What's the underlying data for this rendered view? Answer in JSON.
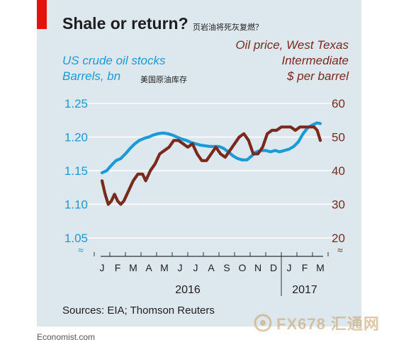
{
  "header": {
    "title": "Shale or return?",
    "title_cn": "页岩油将死灰复燃？"
  },
  "left_axis_label": {
    "line1": "US crude oil stocks",
    "line2": "Barrels, bn",
    "cn": "美国原油库存"
  },
  "right_axis_label": {
    "line1": "Oil price, West Texas",
    "line2": "Intermediate",
    "line3": "$ per barrel"
  },
  "source": "Sources: EIA; Thomson Reuters",
  "footer": "Economist.com",
  "watermark": "FX678 汇通网",
  "colors": {
    "background": "#dde7ee",
    "stocks": "#1a9ad6",
    "price": "#7a2a1c",
    "accent": "#e3120b",
    "grid": "#ffffff"
  },
  "chart_data": {
    "type": "line",
    "x_months": [
      "J",
      "F",
      "M",
      "A",
      "M",
      "J",
      "J",
      "A",
      "S",
      "O",
      "N",
      "D",
      "J",
      "F",
      "M"
    ],
    "x_years": [
      "2016",
      "2017"
    ],
    "left_axis": {
      "ticks": [
        "1.25",
        "1.20",
        "1.15",
        "1.10",
        "1.05"
      ],
      "ylim": [
        1.03,
        1.25
      ]
    },
    "right_axis": {
      "ticks": [
        "60",
        "50",
        "40",
        "30",
        "20"
      ],
      "ylim": [
        18,
        60
      ]
    },
    "grid": true,
    "series": [
      {
        "name": "US crude oil stocks",
        "axis": "left",
        "values": [
          [
            0.0,
            1.147
          ],
          [
            0.3,
            1.15
          ],
          [
            0.6,
            1.158
          ],
          [
            0.9,
            1.165
          ],
          [
            1.2,
            1.168
          ],
          [
            1.5,
            1.175
          ],
          [
            1.8,
            1.183
          ],
          [
            2.1,
            1.19
          ],
          [
            2.4,
            1.195
          ],
          [
            2.7,
            1.198
          ],
          [
            3.0,
            1.2
          ],
          [
            3.3,
            1.203
          ],
          [
            3.6,
            1.205
          ],
          [
            3.9,
            1.206
          ],
          [
            4.2,
            1.205
          ],
          [
            4.5,
            1.203
          ],
          [
            4.8,
            1.2
          ],
          [
            5.1,
            1.197
          ],
          [
            5.4,
            1.195
          ],
          [
            5.7,
            1.192
          ],
          [
            6.0,
            1.19
          ],
          [
            6.3,
            1.188
          ],
          [
            6.6,
            1.187
          ],
          [
            6.9,
            1.186
          ],
          [
            7.2,
            1.186
          ],
          [
            7.5,
            1.186
          ],
          [
            7.8,
            1.183
          ],
          [
            8.1,
            1.178
          ],
          [
            8.4,
            1.172
          ],
          [
            8.7,
            1.168
          ],
          [
            9.0,
            1.166
          ],
          [
            9.3,
            1.166
          ],
          [
            9.6,
            1.172
          ],
          [
            9.9,
            1.178
          ],
          [
            10.2,
            1.18
          ],
          [
            10.5,
            1.18
          ],
          [
            10.8,
            1.178
          ],
          [
            11.1,
            1.18
          ],
          [
            11.4,
            1.178
          ],
          [
            11.7,
            1.18
          ],
          [
            12.0,
            1.182
          ],
          [
            12.3,
            1.186
          ],
          [
            12.6,
            1.193
          ],
          [
            12.9,
            1.205
          ],
          [
            13.2,
            1.214
          ],
          [
            13.5,
            1.218
          ],
          [
            13.8,
            1.221
          ],
          [
            14.0,
            1.22
          ]
        ]
      },
      {
        "name": "Oil price, West Texas Intermediate",
        "axis": "right",
        "values": [
          [
            0.0,
            37
          ],
          [
            0.2,
            33
          ],
          [
            0.4,
            30
          ],
          [
            0.6,
            31
          ],
          [
            0.8,
            33
          ],
          [
            1.0,
            31
          ],
          [
            1.2,
            30
          ],
          [
            1.4,
            31
          ],
          [
            1.7,
            34
          ],
          [
            2.0,
            37
          ],
          [
            2.3,
            39
          ],
          [
            2.6,
            39
          ],
          [
            2.8,
            37
          ],
          [
            3.1,
            40
          ],
          [
            3.4,
            42
          ],
          [
            3.7,
            45
          ],
          [
            4.0,
            46
          ],
          [
            4.3,
            47
          ],
          [
            4.6,
            49
          ],
          [
            4.9,
            49
          ],
          [
            5.2,
            48
          ],
          [
            5.5,
            47
          ],
          [
            5.8,
            48
          ],
          [
            6.1,
            45
          ],
          [
            6.4,
            43
          ],
          [
            6.7,
            43
          ],
          [
            7.0,
            45
          ],
          [
            7.3,
            47
          ],
          [
            7.6,
            45
          ],
          [
            7.9,
            44
          ],
          [
            8.2,
            46
          ],
          [
            8.5,
            48
          ],
          [
            8.8,
            50
          ],
          [
            9.1,
            51
          ],
          [
            9.4,
            49
          ],
          [
            9.7,
            45
          ],
          [
            10.0,
            45
          ],
          [
            10.3,
            47
          ],
          [
            10.6,
            51
          ],
          [
            10.9,
            52
          ],
          [
            11.2,
            52
          ],
          [
            11.5,
            53
          ],
          [
            11.8,
            53
          ],
          [
            12.1,
            53
          ],
          [
            12.4,
            52
          ],
          [
            12.7,
            53
          ],
          [
            13.0,
            53
          ],
          [
            13.3,
            53
          ],
          [
            13.6,
            53
          ],
          [
            13.8,
            52
          ],
          [
            14.0,
            49
          ]
        ]
      }
    ]
  }
}
